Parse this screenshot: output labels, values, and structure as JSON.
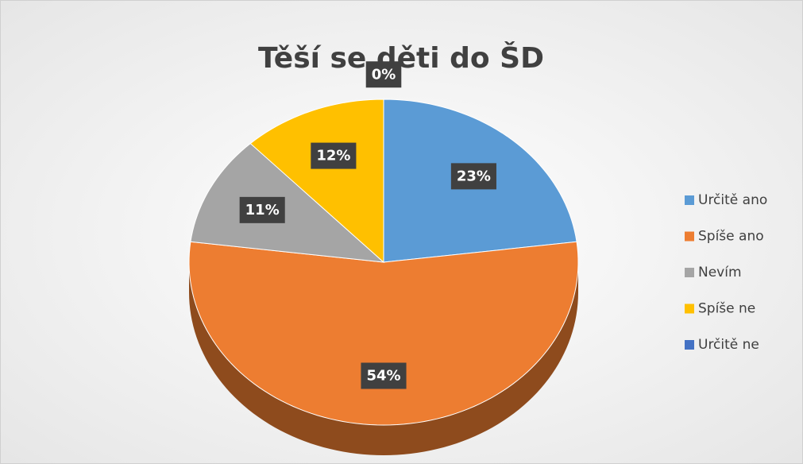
{
  "chart_data": {
    "type": "pie",
    "title": "Těší se děti do ŠD",
    "categories": [
      "Určitě ano",
      "Spíše ano",
      "Nevím",
      "Spíše ne",
      "Určitě ne"
    ],
    "values": [
      23,
      54,
      11,
      12,
      0
    ],
    "value_labels": [
      "23%",
      "54%",
      "11%",
      "12%",
      "0%"
    ],
    "colors": [
      "#5b9bd5",
      "#ed7d31",
      "#a5a5a5",
      "#ffc000",
      "#4472c4"
    ],
    "legend": "right"
  }
}
